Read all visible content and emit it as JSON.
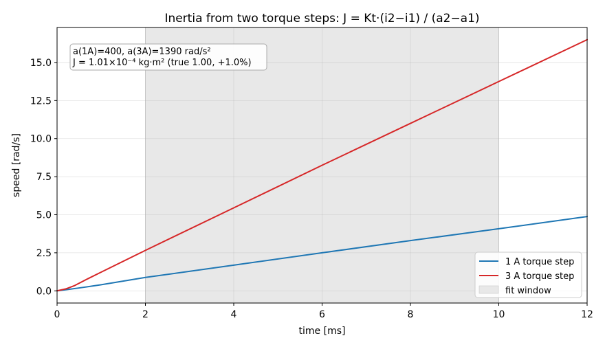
{
  "chart_data": {
    "type": "line",
    "title": "Inertia from two torque steps:  J = Kt·(i2−i1) / (a2−a1)",
    "xlabel": "time [ms]",
    "ylabel": "speed [rad/s]",
    "xlim": [
      0,
      12
    ],
    "ylim": [
      -0.8,
      17.3
    ],
    "xticks": [
      0,
      2,
      4,
      6,
      8,
      10,
      12
    ],
    "xtick_labels": [
      "0",
      "2",
      "4",
      "6",
      "8",
      "10",
      "12"
    ],
    "yticks": [
      0,
      2.5,
      5,
      7.5,
      10,
      12.5,
      15
    ],
    "ytick_labels": [
      "0.0",
      "2.5",
      "5.0",
      "7.5",
      "10.0",
      "12.5",
      "15.0"
    ],
    "grid": true,
    "fit_window": {
      "x": [
        2,
        10
      ],
      "label": "fit window",
      "color": "#e8e8e8"
    },
    "annotation": [
      "a(1A)=400,  a(3A)=1390 rad/s²",
      "J = 1.01×10⁻⁴ kg·m²  (true 1.00, +1.0%)"
    ],
    "legend_position": "lower-right",
    "series": [
      {
        "name": "1 A torque step",
        "color": "#1f77b4",
        "x": [
          0,
          0.25,
          0.5,
          1,
          2,
          4,
          6,
          8,
          10,
          12
        ],
        "y": [
          0,
          0.09,
          0.19,
          0.4,
          0.88,
          1.69,
          2.5,
          3.3,
          4.08,
          4.88
        ]
      },
      {
        "name": "3 A torque step",
        "color": "#d62728",
        "x": [
          0,
          0.2,
          0.4,
          0.7,
          1,
          2,
          4,
          6,
          8,
          10,
          12
        ],
        "y": [
          0,
          0.13,
          0.35,
          0.8,
          1.23,
          2.66,
          5.45,
          8.25,
          11.0,
          13.75,
          16.5
        ]
      }
    ]
  }
}
